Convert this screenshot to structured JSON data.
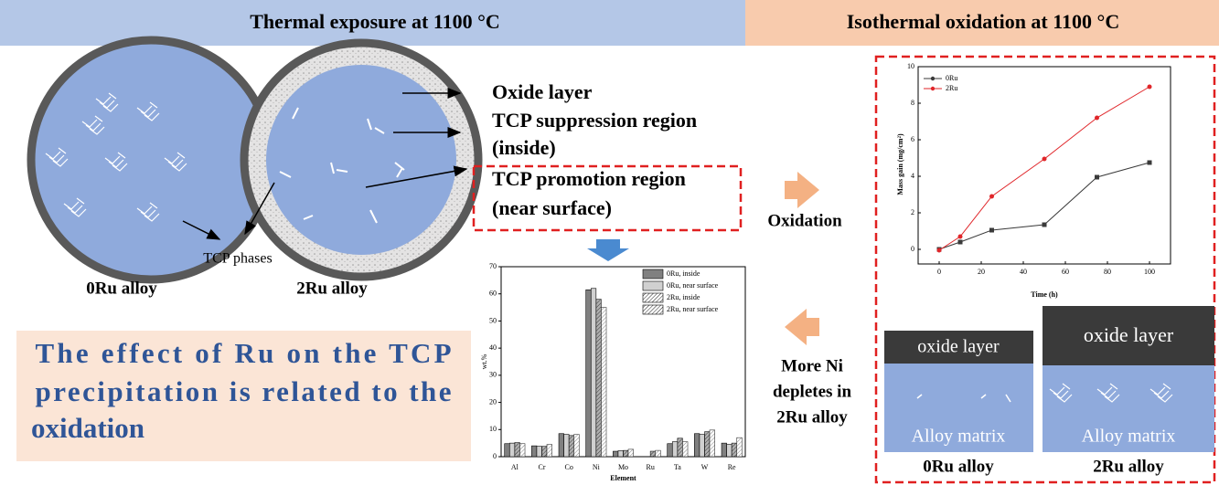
{
  "header": {
    "left": "Thermal exposure at 1100 °C",
    "right": "Isothermal oxidation at 1100 °C"
  },
  "labels": {
    "oxide_layer": "Oxide layer",
    "suppression": [
      "TCP suppression region",
      "(inside)"
    ],
    "promotion": [
      "TCP promotion region",
      "(near surface)"
    ],
    "tcp_phases": "TCP phases",
    "alloy_0ru": "0Ru alloy",
    "alloy_2ru": "2Ru alloy"
  },
  "statement": [
    "The effect of Ru on the TCP",
    "precipitation is related to the",
    "oxidation"
  ],
  "oxidation": "Oxidation",
  "depletion": [
    "More Ni",
    "depletes in",
    "2Ru alloy"
  ],
  "micro": {
    "oxide": "oxide layer",
    "matrix": "Alloy matrix",
    "left": "0Ru alloy",
    "right": "2Ru alloy"
  },
  "chart_data": [
    {
      "type": "bar",
      "xlabel": "Element",
      "ylabel": "wt.%",
      "categories": [
        "Al",
        "Cr",
        "Co",
        "Ni",
        "Mo",
        "Ru",
        "Ta",
        "W",
        "Re"
      ],
      "ylim": [
        0,
        70
      ],
      "yticks": [
        0,
        10,
        20,
        30,
        40,
        50,
        60,
        70
      ],
      "series": [
        {
          "name": "0Ru, inside",
          "color": "#808080",
          "values": [
            4.8,
            4.0,
            8.5,
            61.5,
            2.0,
            0,
            4.8,
            8.5,
            5.0
          ]
        },
        {
          "name": "0Ru, near surface",
          "color": "#d0d0d0",
          "values": [
            5.0,
            3.8,
            8.2,
            62.0,
            2.2,
            0,
            5.5,
            8.2,
            4.5
          ]
        },
        {
          "name": "2Ru, inside",
          "color": "#505050",
          "values": [
            5.2,
            3.8,
            7.8,
            58.0,
            2.3,
            2.0,
            6.8,
            9.2,
            5.0
          ]
        },
        {
          "name": "2Ru, near surface",
          "color": "#ffffff",
          "values": [
            4.8,
            4.5,
            8.2,
            55.0,
            2.7,
            2.3,
            5.5,
            9.8,
            7.0
          ]
        }
      ]
    },
    {
      "type": "line",
      "xlabel": "Time (h)",
      "ylabel": "Mass gain (mg/cm²)",
      "x": [
        0,
        10,
        25,
        50,
        75,
        100
      ],
      "xlim": [
        -10,
        110
      ],
      "xticks": [
        0,
        20,
        40,
        60,
        80,
        100
      ],
      "ylim": [
        -0.8,
        10
      ],
      "yticks": [
        0,
        2,
        4,
        6,
        8,
        10
      ],
      "series": [
        {
          "name": "0Ru",
          "color": "#3a3a3a",
          "marker": "square",
          "values": [
            0,
            0.4,
            1.05,
            1.35,
            3.95,
            4.75
          ]
        },
        {
          "name": "2Ru",
          "color": "#e0262a",
          "marker": "circle",
          "values": [
            -0.05,
            0.7,
            2.9,
            4.95,
            7.2,
            8.9
          ]
        }
      ]
    }
  ]
}
